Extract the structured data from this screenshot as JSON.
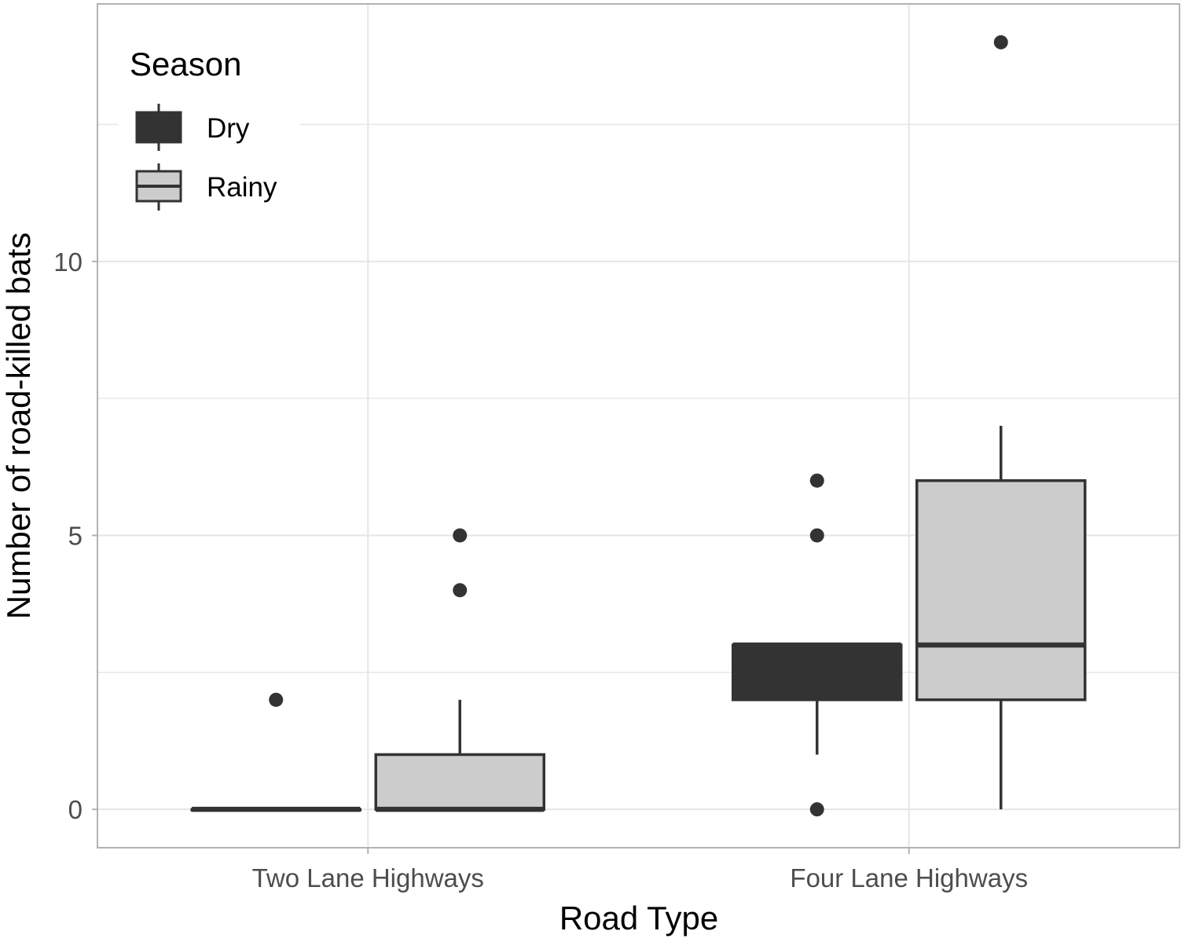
{
  "chart_data": {
    "type": "boxplot",
    "xlabel": "Road Type",
    "ylabel": "Number of road-killed bats",
    "categories": [
      "Two Lane Highways",
      "Four Lane Highways"
    ],
    "ylim": [
      -0.7,
      14.7
    ],
    "yticks": [
      0,
      5,
      10
    ],
    "grid": true,
    "legend": {
      "title": "Season",
      "position": "top-left",
      "entries": [
        {
          "name": "Dry",
          "color": "#333333"
        },
        {
          "name": "Rainy",
          "color": "#cccccc"
        }
      ]
    },
    "series": [
      {
        "name": "Dry",
        "fill": "#333333",
        "boxes": [
          {
            "category": "Two Lane Highways",
            "lower_whisker": 0,
            "q1": 0,
            "median": 0,
            "q3": 0,
            "upper_whisker": 0,
            "outliers": [
              2
            ]
          },
          {
            "category": "Four Lane Highways",
            "lower_whisker": 1,
            "q1": 2,
            "median": 3,
            "q3": 3,
            "upper_whisker": 3,
            "outliers": [
              0,
              5,
              6
            ]
          }
        ]
      },
      {
        "name": "Rainy",
        "fill": "#cccccc",
        "boxes": [
          {
            "category": "Two Lane Highways",
            "lower_whisker": 0,
            "q1": 0,
            "median": 0,
            "q3": 1,
            "upper_whisker": 2,
            "outliers": [
              4,
              5
            ]
          },
          {
            "category": "Four Lane Highways",
            "lower_whisker": 0,
            "q1": 2,
            "median": 3,
            "q3": 6,
            "upper_whisker": 7,
            "outliers": [
              14
            ]
          }
        ]
      }
    ]
  }
}
